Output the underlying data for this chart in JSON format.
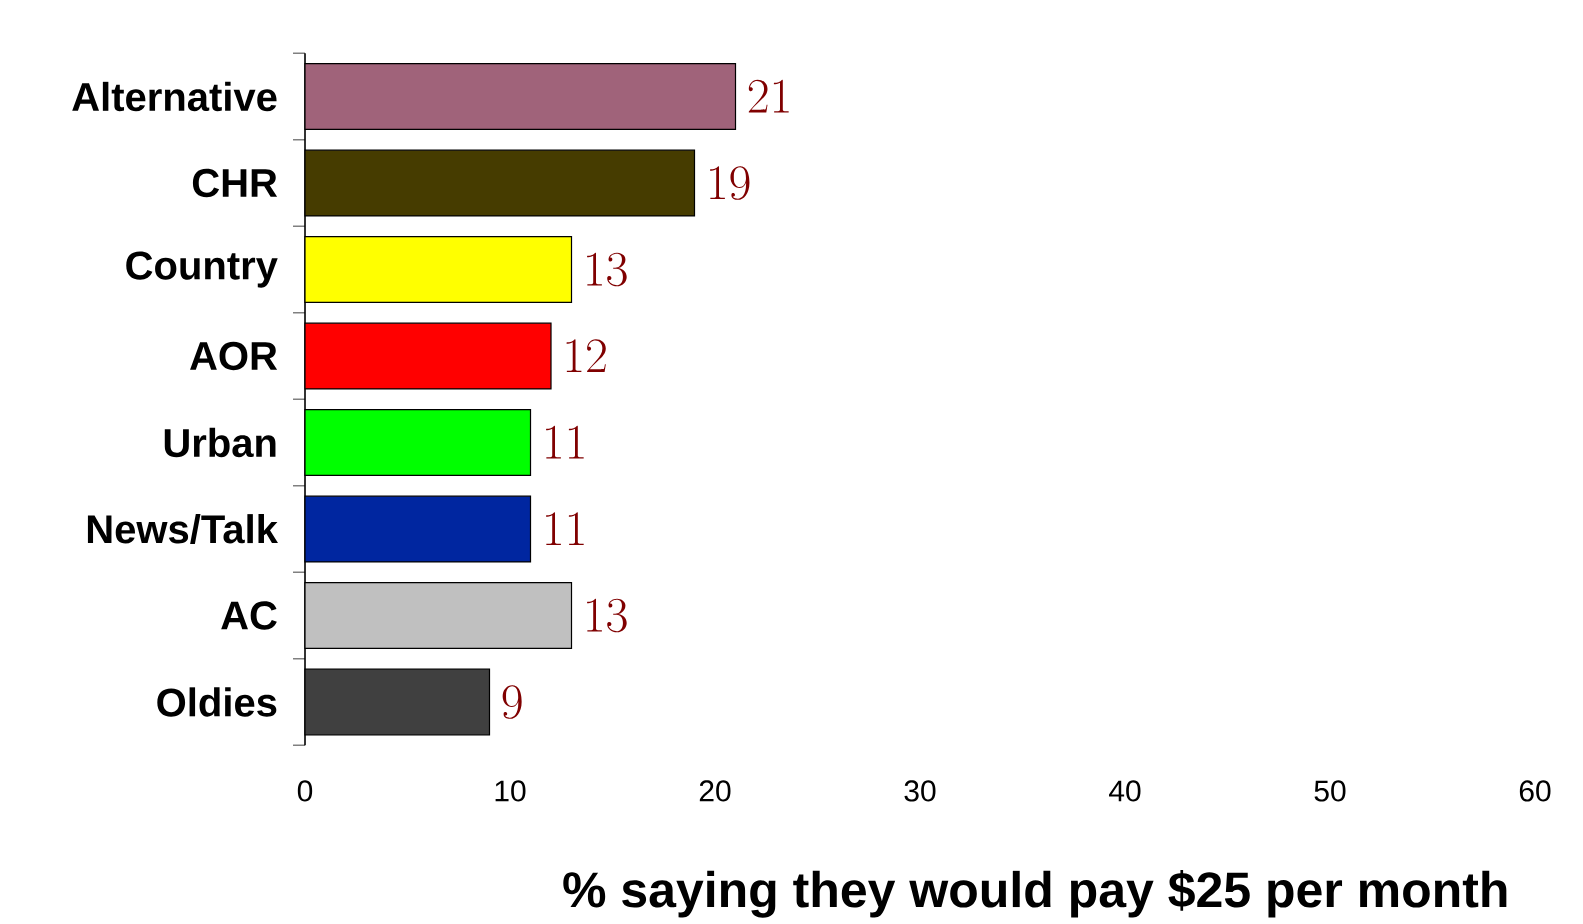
{
  "chart_data": {
    "type": "bar",
    "orientation": "horizontal",
    "categories": [
      "Alternative",
      "CHR",
      "Country",
      "AOR",
      "Urban",
      "News/Talk",
      "AC",
      "Oldies"
    ],
    "values": [
      21,
      19,
      13,
      12,
      11,
      11,
      13,
      9
    ],
    "colors": [
      "#a0637a",
      "#463c00",
      "#ffff00",
      "#ff0000",
      "#00ff00",
      "#0026a0",
      "#c0c0c0",
      "#404040"
    ],
    "xlim": [
      0,
      60
    ],
    "xticks": [
      0,
      10,
      20,
      30,
      40,
      50,
      60
    ],
    "xlabel": "% saying they would pay $25 per month",
    "data_labels": true
  }
}
